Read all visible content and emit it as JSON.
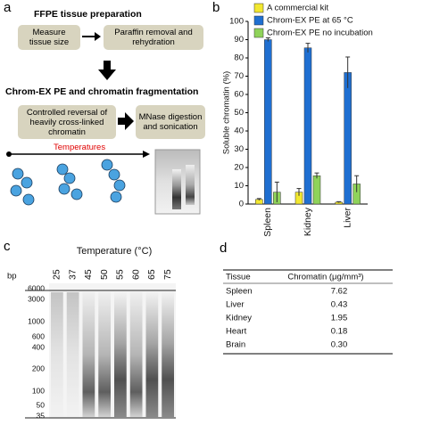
{
  "panel_labels": [
    "a",
    "b",
    "c",
    "d"
  ],
  "panel_a": {
    "title": "FFPE tissue preparation",
    "step1": "Measure tissue size",
    "step2": "Paraffin removal and rehydration",
    "title2": "Chrom-EX PE and chromatin fragmentation",
    "step3": "Controlled reversal of heavily cross-linked chromatin",
    "step4": "MNase digestion and sonication",
    "arrow_label": "Temperatures"
  },
  "chart_data": {
    "type": "bar",
    "ylabel": "Soluble chromatin (%)",
    "categories": [
      "Spleen",
      "Kidney",
      "Liver"
    ],
    "series": [
      {
        "name": "A commercial kit",
        "color": "#f2e830",
        "values": [
          2.5,
          6.5,
          1
        ],
        "errors": [
          0.5,
          2,
          0.3
        ]
      },
      {
        "name": "Chrom-EX PE at 65 °C",
        "color": "#1f6fd1",
        "values": [
          90,
          85.5,
          72
        ],
        "errors": [
          1,
          2.5,
          8.5
        ]
      },
      {
        "name": "Chrom-EX PE no incubation",
        "color": "#8fd35a",
        "values": [
          6.5,
          15.5,
          11
        ],
        "errors": [
          5.5,
          1.5,
          4.5
        ]
      }
    ],
    "ylim": [
      0,
      100
    ],
    "yticks": [
      0,
      10,
      20,
      30,
      40,
      50,
      60,
      70,
      80,
      90,
      100
    ]
  },
  "panel_c": {
    "title": "Temperature (°C)",
    "lanes": [
      "25",
      "37",
      "45",
      "50",
      "55",
      "60",
      "65",
      "75"
    ],
    "unit": "bp",
    "ladder": [
      "6000",
      "3000",
      "1000",
      "600",
      "400",
      "200",
      "100",
      "50",
      "35"
    ]
  },
  "panel_d": {
    "header": [
      "Tissue",
      "Chromatin (μg/mm³)"
    ],
    "rows": [
      [
        "Spleen",
        "7.62"
      ],
      [
        "Liver",
        "0.43"
      ],
      [
        "Kidney",
        "1.95"
      ],
      [
        "Heart",
        "0.18"
      ],
      [
        "Brain",
        "0.30"
      ]
    ]
  }
}
